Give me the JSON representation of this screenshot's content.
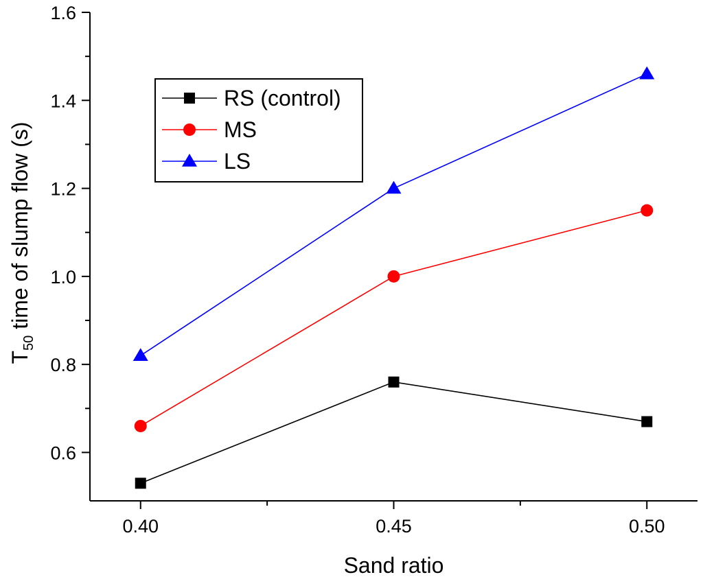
{
  "chart_data": {
    "type": "line",
    "x": [
      0.4,
      0.45,
      0.5
    ],
    "x_tick_labels": [
      "0.40",
      "0.45",
      "0.50"
    ],
    "y_tick_labels": [
      "0.6",
      "0.8",
      "1.0",
      "1.2",
      "1.4",
      "1.6"
    ],
    "xlim": [
      0.39,
      0.51
    ],
    "ylim": [
      0.49,
      1.6
    ],
    "xlabel": "Sand ratio",
    "ylabel": {
      "prefix": "T",
      "subscript": "50",
      "rest": " time of slump flow (s)"
    },
    "series": [
      {
        "name": "RS (control)",
        "color": "#000000",
        "marker": "square",
        "values": [
          0.53,
          0.76,
          0.67
        ]
      },
      {
        "name": "MS",
        "color": "#ff0000",
        "marker": "circle",
        "values": [
          0.66,
          1.0,
          1.15
        ]
      },
      {
        "name": "LS",
        "color": "#0000ff",
        "marker": "triangle",
        "values": [
          0.82,
          1.2,
          1.46
        ]
      }
    ],
    "legend_position": "top-left",
    "grid": false
  }
}
